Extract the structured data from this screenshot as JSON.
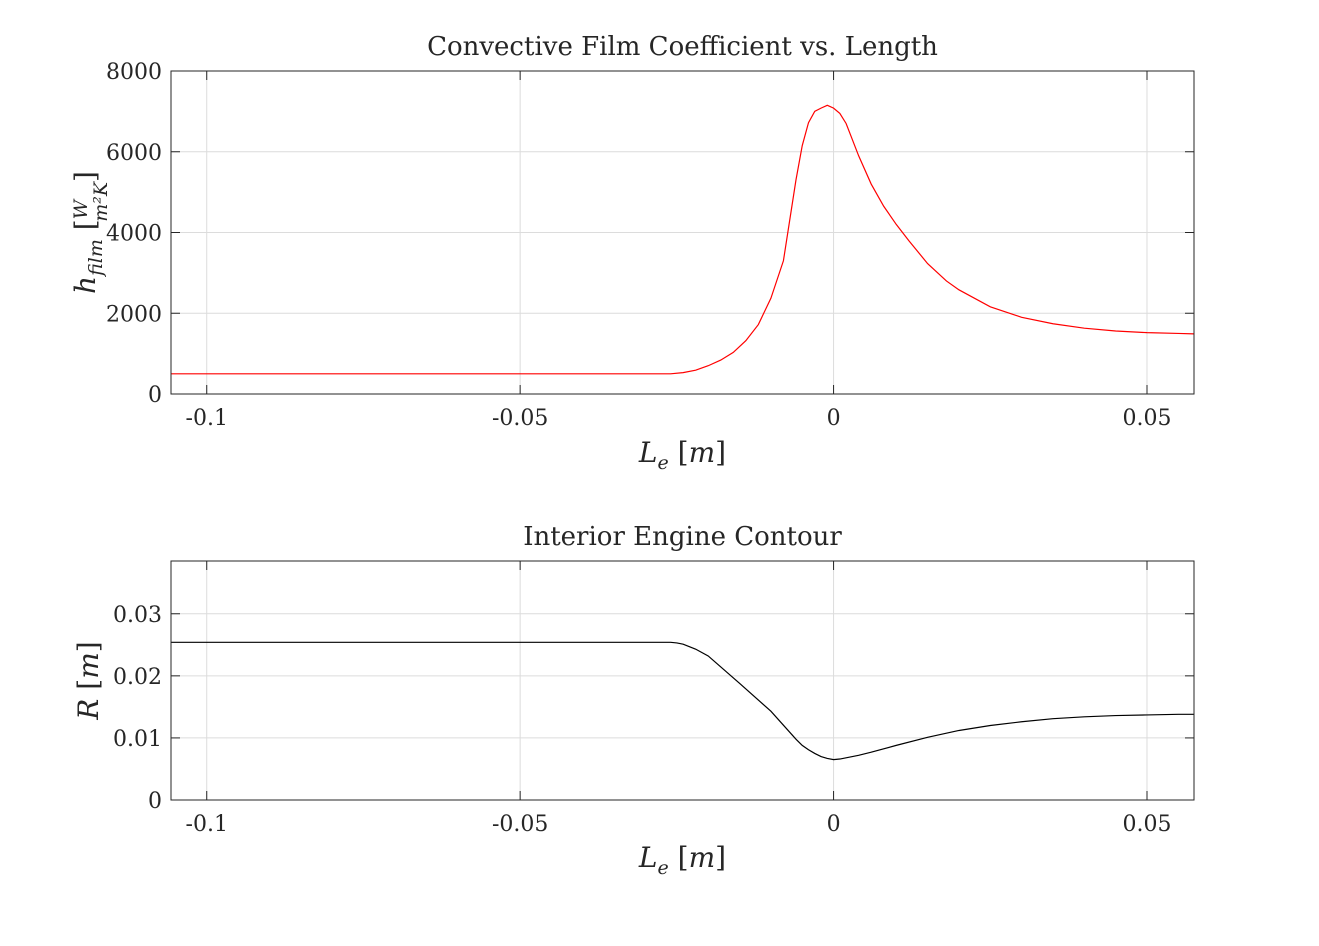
{
  "chart_data": [
    {
      "type": "line",
      "title": "Convective Film Coefficient vs. Length",
      "xlabel": "L_e [m]",
      "ylabel": "h_film [W / m²K]",
      "xlim": [
        -0.1057,
        0.0575
      ],
      "ylim": [
        0,
        8000
      ],
      "xticks": [
        -0.1,
        -0.05,
        0,
        0.05
      ],
      "xtick_labels": [
        "-0.1",
        "-0.05",
        "0",
        "0.05"
      ],
      "yticks": [
        0,
        2000,
        4000,
        6000,
        8000
      ],
      "ytick_labels": [
        "0",
        "2000",
        "4000",
        "6000",
        "8000"
      ],
      "grid": true,
      "series": [
        {
          "color": "#ff0000",
          "x": [
            -0.1057,
            -0.09,
            -0.07,
            -0.05,
            -0.04,
            -0.03,
            -0.026,
            -0.024,
            -0.022,
            -0.02,
            -0.018,
            -0.016,
            -0.014,
            -0.012,
            -0.01,
            -0.008,
            -0.007,
            -0.006,
            -0.005,
            -0.004,
            -0.003,
            -0.002,
            -0.001,
            0.0,
            0.001,
            0.002,
            0.004,
            0.006,
            0.008,
            0.01,
            0.012,
            0.015,
            0.018,
            0.02,
            0.025,
            0.03,
            0.035,
            0.04,
            0.045,
            0.05,
            0.055,
            0.0575
          ],
          "y": [
            500,
            500,
            500,
            500,
            500,
            500,
            500,
            530,
            590,
            700,
            840,
            1030,
            1320,
            1720,
            2370,
            3300,
            4300,
            5300,
            6150,
            6720,
            7000,
            7080,
            7150,
            7080,
            6950,
            6700,
            5900,
            5200,
            4650,
            4200,
            3800,
            3230,
            2800,
            2580,
            2160,
            1900,
            1740,
            1630,
            1560,
            1520,
            1500,
            1490
          ]
        }
      ]
    },
    {
      "type": "line",
      "title": "Interior Engine Contour",
      "xlabel": "L_e [m]",
      "ylabel": "R [m]",
      "xlim": [
        -0.1057,
        0.0575
      ],
      "ylim": [
        0,
        0.0385
      ],
      "xticks": [
        -0.1,
        -0.05,
        0,
        0.05
      ],
      "xtick_labels": [
        "-0.1",
        "-0.05",
        "0",
        "0.05"
      ],
      "yticks": [
        0,
        0.01,
        0.02,
        0.03
      ],
      "ytick_labels": [
        "0",
        "0.01",
        "0.02",
        "0.03"
      ],
      "grid": true,
      "series": [
        {
          "color": "#000000",
          "x": [
            -0.1057,
            -0.08,
            -0.05,
            -0.03,
            -0.026,
            -0.025,
            -0.024,
            -0.023,
            -0.022,
            -0.02,
            -0.015,
            -0.01,
            -0.006,
            -0.005,
            -0.004,
            -0.003,
            -0.002,
            -0.001,
            0.0,
            0.001,
            0.002,
            0.004,
            0.006,
            0.01,
            0.015,
            0.02,
            0.025,
            0.03,
            0.035,
            0.04,
            0.045,
            0.05,
            0.055,
            0.0575
          ],
          "y": [
            0.0254,
            0.0254,
            0.0254,
            0.0254,
            0.0254,
            0.0253,
            0.0251,
            0.0247,
            0.0243,
            0.0232,
            0.0188,
            0.0143,
            0.0098,
            0.0088,
            0.0081,
            0.0075,
            0.007,
            0.0067,
            0.0065,
            0.0066,
            0.0068,
            0.0072,
            0.0077,
            0.0088,
            0.0101,
            0.0112,
            0.012,
            0.0126,
            0.0131,
            0.0134,
            0.0136,
            0.0137,
            0.0138,
            0.0138
          ]
        }
      ]
    }
  ]
}
